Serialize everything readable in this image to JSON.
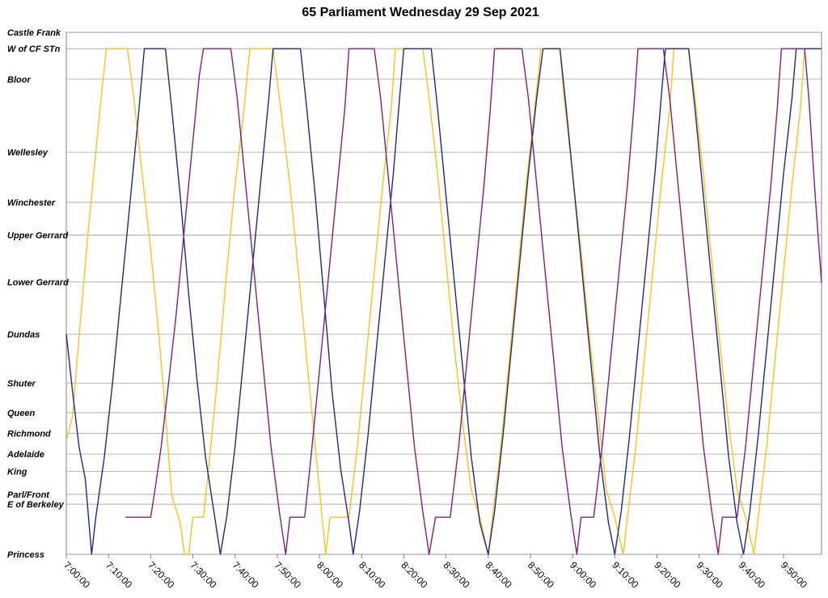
{
  "chart_data": {
    "type": "line",
    "title": "65 Parliament Wednesday 29 Sep 2021",
    "x_tick_labels": [
      "7:00:00",
      "7:10:00",
      "7:20:00",
      "7:30:00",
      "7:40:00",
      "7:50:00",
      "8:00:00",
      "8:10:00",
      "8:20:00",
      "8:30:00",
      "8:40:00",
      "8:50:00",
      "9:00:00",
      "9:10:00",
      "9:20:00",
      "9:30:00",
      "9:40:00",
      "9:50:00"
    ],
    "xlim": [
      "7:00:00",
      "9:59:00"
    ],
    "y_stops": [
      {
        "name": "Castle Frank",
        "dist": 0
      },
      {
        "name": "W of CF STn",
        "dist": 0.15
      },
      {
        "name": "Bloor",
        "dist": 0.43
      },
      {
        "name": "Wellesley",
        "dist": 1.1
      },
      {
        "name": "Winchester",
        "dist": 1.56
      },
      {
        "name": "Upper Gerrard",
        "dist": 1.86
      },
      {
        "name": "Lower Gerrard",
        "dist": 2.29
      },
      {
        "name": "Dundas",
        "dist": 2.77
      },
      {
        "name": "Shuter",
        "dist": 3.22
      },
      {
        "name": "Queen",
        "dist": 3.49
      },
      {
        "name": "Richmond",
        "dist": 3.68
      },
      {
        "name": "Adelaide",
        "dist": 3.87
      },
      {
        "name": "King",
        "dist": 4.03
      },
      {
        "name": "Parl/Front",
        "dist": 4.24
      },
      {
        "name": "E of Berkeley",
        "dist": 4.33
      },
      {
        "name": "Princess",
        "dist": 4.79
      }
    ],
    "ylim": [
      0,
      4.79
    ],
    "grid": true,
    "series": [
      {
        "color": "#FFBF1F",
        "points": [
          [
            "7:00:00",
            3.75
          ],
          [
            "7:01:30",
            3.52
          ],
          [
            "7:03:00",
            2.8
          ],
          [
            "7:05:00",
            1.9
          ],
          [
            "7:07:00",
            1.1
          ],
          [
            "7:08:30",
            0.5
          ],
          [
            "7:09:30",
            0.15
          ],
          [
            "7:14:30",
            0.15
          ],
          [
            "7:16:00",
            0.6
          ],
          [
            "7:18:00",
            1.3
          ],
          [
            "7:20:00",
            2.0
          ],
          [
            "7:22:00",
            2.8
          ],
          [
            "7:23:30",
            3.5
          ],
          [
            "7:25:00",
            4.25
          ],
          [
            "7:27:00",
            4.5
          ],
          [
            "7:28:00",
            4.79
          ],
          [
            "7:29:00",
            4.79
          ],
          [
            "7:30:00",
            4.45
          ],
          [
            "7:32:30",
            4.45
          ],
          [
            "7:34:00",
            3.9
          ],
          [
            "7:36:00",
            3.1
          ],
          [
            "7:38:00",
            2.2
          ],
          [
            "7:40:00",
            1.4
          ],
          [
            "7:42:00",
            0.75
          ],
          [
            "7:43:30",
            0.15
          ],
          [
            "7:49:00",
            0.15
          ],
          [
            "7:50:30",
            0.6
          ],
          [
            "7:53:00",
            1.4
          ],
          [
            "7:55:00",
            2.2
          ],
          [
            "7:57:00",
            3.0
          ],
          [
            "7:59:00",
            3.8
          ],
          [
            "8:00:30",
            4.4
          ],
          [
            "8:01:30",
            4.79
          ],
          [
            "8:02:30",
            4.45
          ],
          [
            "8:07:00",
            4.45
          ],
          [
            "8:09:00",
            3.8
          ],
          [
            "8:11:00",
            3.0
          ],
          [
            "8:13:00",
            2.2
          ],
          [
            "8:15:00",
            1.4
          ],
          [
            "8:17:00",
            0.7
          ],
          [
            "8:18:00",
            0.15
          ],
          [
            "8:24:30",
            0.15
          ],
          [
            "8:26:00",
            0.6
          ],
          [
            "8:28:00",
            1.3
          ],
          [
            "8:30:00",
            2.1
          ],
          [
            "8:32:00",
            2.9
          ],
          [
            "8:34:00",
            3.6
          ],
          [
            "8:36:00",
            4.2
          ],
          [
            "8:38:00",
            4.45
          ],
          [
            "8:40:00",
            4.79
          ],
          [
            "8:41:00",
            4.45
          ],
          [
            "8:43:00",
            3.8
          ],
          [
            "8:45:00",
            3.0
          ],
          [
            "8:47:00",
            2.2
          ],
          [
            "8:49:00",
            1.4
          ],
          [
            "8:51:00",
            0.7
          ],
          [
            "8:52:30",
            0.15
          ],
          [
            "8:57:00",
            0.15
          ],
          [
            "8:58:00",
            0.6
          ],
          [
            "9:00:00",
            1.3
          ],
          [
            "9:02:00",
            2.0
          ],
          [
            "9:04:00",
            2.8
          ],
          [
            "9:06:00",
            3.5
          ],
          [
            "9:08:00",
            4.2
          ],
          [
            "9:10:00",
            4.45
          ],
          [
            "9:12:00",
            4.79
          ],
          [
            "9:13:00",
            4.45
          ],
          [
            "9:15:00",
            3.8
          ],
          [
            "9:17:00",
            3.0
          ],
          [
            "9:19:00",
            2.2
          ],
          [
            "9:21:00",
            1.4
          ],
          [
            "9:23:00",
            0.7
          ],
          [
            "9:24:00",
            0.15
          ],
          [
            "9:27:30",
            0.15
          ],
          [
            "9:29:00",
            0.6
          ],
          [
            "9:31:00",
            1.3
          ],
          [
            "9:33:00",
            2.1
          ],
          [
            "9:35:00",
            2.9
          ],
          [
            "9:37:00",
            3.6
          ],
          [
            "9:39:00",
            4.2
          ],
          [
            "9:41:00",
            4.45
          ],
          [
            "9:43:00",
            4.79
          ],
          [
            "9:44:00",
            4.45
          ],
          [
            "9:46:00",
            3.8
          ],
          [
            "9:48:00",
            3.0
          ],
          [
            "9:50:00",
            2.2
          ],
          [
            "9:52:00",
            1.4
          ],
          [
            "9:54:00",
            0.7
          ],
          [
            "9:55:00",
            0.15
          ],
          [
            "9:59:00",
            0.15
          ]
        ]
      },
      {
        "color": "#1F2A80",
        "points": [
          [
            "7:00:00",
            2.77
          ],
          [
            "7:01:30",
            3.3
          ],
          [
            "7:03:00",
            3.8
          ],
          [
            "7:04:30",
            4.1
          ],
          [
            "7:06:00",
            4.79
          ],
          [
            "7:07:00",
            4.45
          ],
          [
            "7:09:00",
            3.9
          ],
          [
            "7:11:00",
            3.2
          ],
          [
            "7:13:00",
            2.4
          ],
          [
            "7:15:00",
            1.6
          ],
          [
            "7:17:00",
            0.8
          ],
          [
            "7:18:30",
            0.15
          ],
          [
            "7:23:30",
            0.15
          ],
          [
            "7:25:00",
            0.7
          ],
          [
            "7:27:00",
            1.5
          ],
          [
            "7:29:00",
            2.4
          ],
          [
            "7:31:00",
            3.2
          ],
          [
            "7:33:00",
            3.9
          ],
          [
            "7:35:00",
            4.4
          ],
          [
            "7:36:30",
            4.79
          ],
          [
            "7:38:00",
            4.45
          ],
          [
            "7:40:00",
            3.8
          ],
          [
            "7:42:00",
            3.0
          ],
          [
            "7:44:00",
            2.2
          ],
          [
            "7:46:00",
            1.4
          ],
          [
            "7:48:00",
            0.6
          ],
          [
            "7:49:00",
            0.15
          ],
          [
            "7:55:30",
            0.15
          ],
          [
            "7:57:00",
            0.7
          ],
          [
            "7:59:00",
            1.5
          ],
          [
            "8:01:00",
            2.4
          ],
          [
            "8:03:00",
            3.3
          ],
          [
            "8:05:00",
            4.0
          ],
          [
            "8:07:00",
            4.5
          ],
          [
            "8:08:00",
            4.79
          ],
          [
            "8:09:30",
            4.4
          ],
          [
            "8:11:30",
            3.7
          ],
          [
            "8:13:30",
            2.9
          ],
          [
            "8:15:30",
            2.1
          ],
          [
            "8:17:30",
            1.3
          ],
          [
            "8:19:00",
            0.6
          ],
          [
            "8:20:00",
            0.15
          ],
          [
            "8:26:30",
            0.15
          ],
          [
            "8:28:00",
            0.7
          ],
          [
            "8:30:00",
            1.5
          ],
          [
            "8:32:00",
            2.3
          ],
          [
            "8:34:00",
            3.1
          ],
          [
            "8:36:00",
            3.9
          ],
          [
            "8:38:00",
            4.5
          ],
          [
            "8:40:00",
            4.79
          ],
          [
            "8:41:30",
            4.4
          ],
          [
            "8:43:30",
            3.7
          ],
          [
            "8:45:30",
            2.9
          ],
          [
            "8:47:30",
            2.1
          ],
          [
            "8:49:30",
            1.3
          ],
          [
            "8:51:30",
            0.6
          ],
          [
            "8:53:00",
            0.15
          ],
          [
            "8:57:00",
            0.15
          ],
          [
            "8:58:30",
            0.7
          ],
          [
            "9:00:30",
            1.5
          ],
          [
            "9:02:30",
            2.3
          ],
          [
            "9:04:30",
            3.1
          ],
          [
            "9:06:30",
            3.9
          ],
          [
            "9:08:30",
            4.5
          ],
          [
            "9:10:00",
            4.79
          ],
          [
            "9:11:30",
            4.4
          ],
          [
            "9:13:30",
            3.7
          ],
          [
            "9:15:30",
            2.9
          ],
          [
            "9:17:30",
            2.1
          ],
          [
            "9:19:30",
            1.3
          ],
          [
            "9:21:00",
            0.6
          ],
          [
            "9:22:00",
            0.15
          ],
          [
            "9:27:30",
            0.15
          ],
          [
            "9:29:00",
            0.7
          ],
          [
            "9:31:00",
            1.5
          ],
          [
            "9:33:00",
            2.3
          ],
          [
            "9:35:00",
            3.1
          ],
          [
            "9:37:00",
            3.9
          ],
          [
            "9:39:00",
            4.5
          ],
          [
            "9:40:30",
            4.79
          ],
          [
            "9:42:00",
            4.4
          ],
          [
            "9:44:00",
            3.7
          ],
          [
            "9:46:00",
            2.9
          ],
          [
            "9:48:00",
            2.1
          ],
          [
            "9:50:00",
            1.3
          ],
          [
            "9:52:00",
            0.6
          ],
          [
            "9:53:00",
            0.15
          ],
          [
            "9:59:00",
            0.15
          ]
        ]
      },
      {
        "color": "#7F1F80",
        "points": [
          [
            "7:14:00",
            4.45
          ],
          [
            "7:20:00",
            4.45
          ],
          [
            "7:21:00",
            4.2
          ],
          [
            "7:22:30",
            3.8
          ],
          [
            "7:24:00",
            3.3
          ],
          [
            "7:26:00",
            2.6
          ],
          [
            "7:28:00",
            1.8
          ],
          [
            "7:30:00",
            1.0
          ],
          [
            "7:31:30",
            0.4
          ],
          [
            "7:32:30",
            0.15
          ],
          [
            "7:39:00",
            0.15
          ],
          [
            "7:40:30",
            0.6
          ],
          [
            "7:42:30",
            1.4
          ],
          [
            "7:44:30",
            2.2
          ],
          [
            "7:46:30",
            3.0
          ],
          [
            "7:48:30",
            3.8
          ],
          [
            "7:50:30",
            4.4
          ],
          [
            "7:52:00",
            4.79
          ],
          [
            "7:53:00",
            4.45
          ],
          [
            "7:56:30",
            4.45
          ],
          [
            "7:58:00",
            3.9
          ],
          [
            "8:00:00",
            3.1
          ],
          [
            "8:02:00",
            2.3
          ],
          [
            "8:04:00",
            1.5
          ],
          [
            "8:06:00",
            0.7
          ],
          [
            "8:07:00",
            0.15
          ],
          [
            "8:13:00",
            0.15
          ],
          [
            "8:14:30",
            0.6
          ],
          [
            "8:16:30",
            1.4
          ],
          [
            "8:18:30",
            2.2
          ],
          [
            "8:20:30",
            3.0
          ],
          [
            "8:22:30",
            3.8
          ],
          [
            "8:24:30",
            4.4
          ],
          [
            "8:26:00",
            4.79
          ],
          [
            "8:27:30",
            4.45
          ],
          [
            "8:31:00",
            4.45
          ],
          [
            "8:33:00",
            3.8
          ],
          [
            "8:35:00",
            3.0
          ],
          [
            "8:37:00",
            2.2
          ],
          [
            "8:39:00",
            1.4
          ],
          [
            "8:40:30",
            0.7
          ],
          [
            "8:41:30",
            0.15
          ],
          [
            "8:48:00",
            0.15
          ],
          [
            "8:49:30",
            0.6
          ],
          [
            "8:51:30",
            1.4
          ],
          [
            "8:53:30",
            2.2
          ],
          [
            "8:55:30",
            3.0
          ],
          [
            "8:57:30",
            3.8
          ],
          [
            "8:59:30",
            4.4
          ],
          [
            "9:01:00",
            4.79
          ],
          [
            "9:02:00",
            4.45
          ],
          [
            "9:05:00",
            4.45
          ],
          [
            "9:07:00",
            3.8
          ],
          [
            "9:09:00",
            3.0
          ],
          [
            "9:11:00",
            2.2
          ],
          [
            "9:13:00",
            1.4
          ],
          [
            "9:14:30",
            0.7
          ],
          [
            "9:15:30",
            0.15
          ],
          [
            "9:21:30",
            0.15
          ],
          [
            "9:23:00",
            0.6
          ],
          [
            "9:25:00",
            1.4
          ],
          [
            "9:27:00",
            2.2
          ],
          [
            "9:29:00",
            3.0
          ],
          [
            "9:31:00",
            3.8
          ],
          [
            "9:33:00",
            4.4
          ],
          [
            "9:34:30",
            4.79
          ],
          [
            "9:35:30",
            4.45
          ],
          [
            "9:39:00",
            4.45
          ],
          [
            "9:41:00",
            3.8
          ],
          [
            "9:43:00",
            3.0
          ],
          [
            "9:45:00",
            2.2
          ],
          [
            "9:47:00",
            1.4
          ],
          [
            "9:48:30",
            0.7
          ],
          [
            "9:49:30",
            0.15
          ],
          [
            "9:55:00",
            0.15
          ],
          [
            "9:56:00",
            0.6
          ],
          [
            "9:57:30",
            1.5
          ],
          [
            "9:59:00",
            2.3
          ]
        ]
      }
    ]
  }
}
